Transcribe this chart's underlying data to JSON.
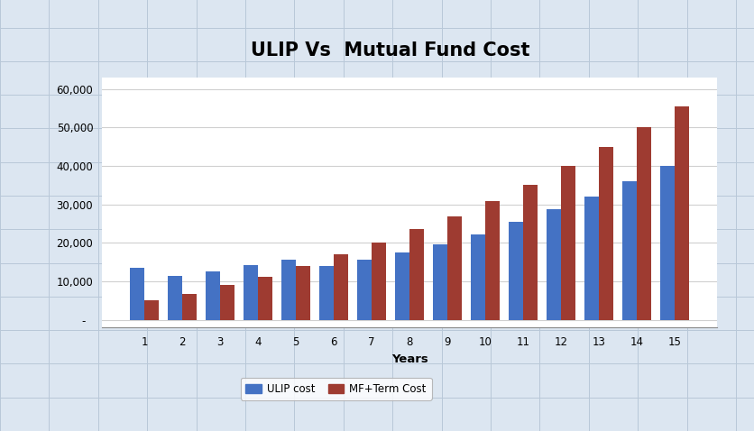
{
  "title": "ULIP Vs  Mutual Fund Cost",
  "xlabel": "Years",
  "years": [
    1,
    2,
    3,
    4,
    5,
    6,
    7,
    8,
    9,
    10,
    11,
    12,
    13,
    14,
    15
  ],
  "ulip_cost": [
    13500,
    11500,
    12700,
    14200,
    15700,
    14000,
    15700,
    17500,
    19700,
    22200,
    25500,
    28700,
    32000,
    36000,
    40000
  ],
  "mf_term_cost": [
    5000,
    6700,
    9000,
    11200,
    14000,
    17000,
    20000,
    23700,
    27000,
    31000,
    35000,
    40000,
    45000,
    50000,
    55500
  ],
  "ulip_color": "#4472C4",
  "mf_color": "#9E3B31",
  "legend_labels": [
    "ULIP cost",
    "MF+Term Cost"
  ],
  "ylim": [
    -2000,
    63000
  ],
  "yticks": [
    0,
    10000,
    20000,
    30000,
    40000,
    50000,
    60000
  ],
  "ytick_labels": [
    "-  ",
    "10,000",
    "20,000",
    "30,000",
    "40,000",
    "50,000",
    "60,000"
  ],
  "background_color": "#ffffff",
  "outer_background": "#c9d5e8",
  "chart_border_color": "#a0a0a0",
  "grid_color": "#d0d0d0",
  "title_fontsize": 15,
  "bar_width": 0.38,
  "spreadsheet_line_color": "#b8c8d8",
  "spreadsheet_bg": "#dce6f1"
}
